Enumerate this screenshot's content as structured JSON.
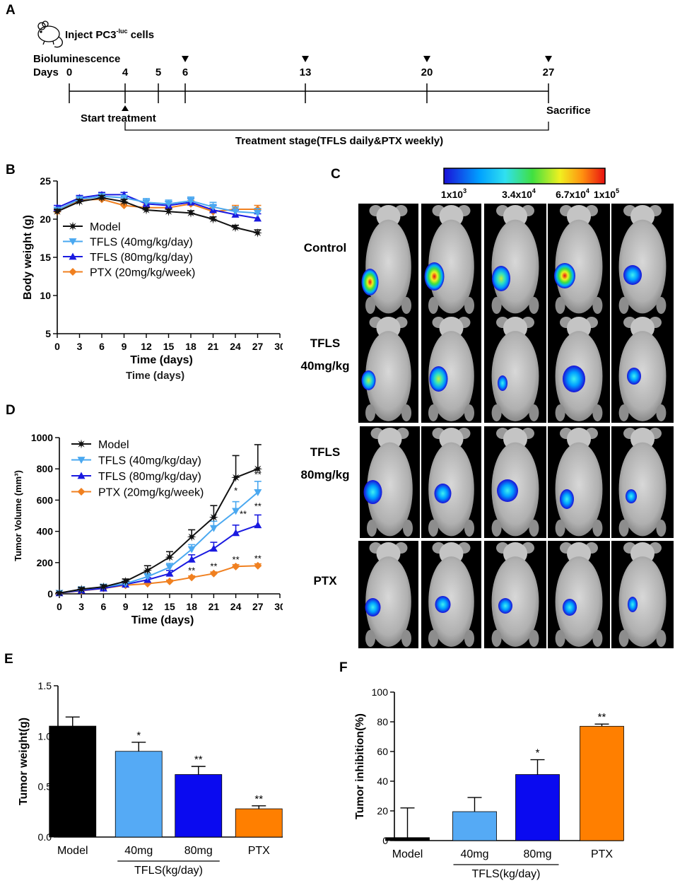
{
  "panels": {
    "A": "A",
    "B": "B",
    "C": "C",
    "D": "D",
    "E": "E",
    "F": "F"
  },
  "timeline": {
    "inject_label": "Inject PC3",
    "inject_superscript": "-luc",
    "inject_suffix": " cells",
    "biolum_label": "Bioluminescence",
    "days_label": "Days",
    "days": [
      0,
      4,
      5,
      6,
      13,
      20,
      27
    ],
    "biolum_days": [
      6,
      13,
      20,
      27
    ],
    "start_label": "Start treatment",
    "sacrifice_label": "Sacrifice",
    "stage_label": "Treatment stage(TFLS daily&PTX weekly)"
  },
  "colorbar": {
    "labels": [
      "1x10",
      "3.4x10",
      "6.7x10",
      "1x10"
    ],
    "exponents": [
      "3",
      "4",
      "4",
      "5"
    ],
    "colors": [
      "#1a10d8",
      "#00a0ff",
      "#30e0f0",
      "#40e040",
      "#f0f020",
      "#ff9010",
      "#e81010"
    ]
  },
  "imaging": {
    "row_labels": [
      [
        "Control"
      ],
      [
        "TFLS",
        "40mg/kg"
      ],
      [
        "TFLS",
        "80mg/kg"
      ],
      [
        "PTX"
      ]
    ],
    "counts_per_row": 5
  },
  "watermark_text": "Time (days)",
  "legend_colors": {
    "Model": "#111111",
    "TFLS40": "#4aa8f0",
    "TFLS80": "#1a1ae0",
    "PTX": "#f08020"
  },
  "chart_data": [
    {
      "id": "B",
      "type": "line",
      "title": "",
      "xlabel": "Time (days)",
      "ylabel": "Body weight (g)",
      "xlim": [
        0,
        30
      ],
      "ylim": [
        5,
        25
      ],
      "xticks": [
        0,
        3,
        6,
        9,
        12,
        15,
        18,
        21,
        24,
        27,
        30
      ],
      "yticks": [
        5,
        10,
        15,
        20,
        25
      ],
      "x": [
        0,
        3,
        6,
        9,
        12,
        15,
        18,
        21,
        24,
        27
      ],
      "series": [
        {
          "name": "Model",
          "color": "#111111",
          "marker": "star",
          "values": [
            21.0,
            22.3,
            22.8,
            22.3,
            21.2,
            21.0,
            20.8,
            20.0,
            18.9,
            18.2
          ],
          "errors": [
            0.3,
            0.3,
            0.3,
            0.3,
            0.3,
            0.3,
            0.3,
            0.3,
            0.3,
            0.4
          ]
        },
        {
          "name": "TFLS (40mg/kg/day)",
          "color": "#4aa8f0",
          "marker": "tri-down",
          "values": [
            21.2,
            22.6,
            23.0,
            22.8,
            22.2,
            22.0,
            22.4,
            21.6,
            21.0,
            20.8
          ],
          "errors": [
            0.3,
            0.3,
            0.3,
            0.3,
            0.5,
            0.5,
            0.5,
            0.6,
            0.6,
            0.6
          ]
        },
        {
          "name": "TFLS (80mg/kg/day)",
          "color": "#1a1ae0",
          "marker": "tri-up",
          "values": [
            21.5,
            22.8,
            23.2,
            23.2,
            22.0,
            21.8,
            22.2,
            21.2,
            20.6,
            20.1
          ],
          "errors": [
            0.3,
            0.3,
            0.3,
            0.3,
            0.5,
            0.5,
            0.5,
            0.6,
            0.6,
            0.6
          ]
        },
        {
          "name": "PTX (20mg/kg/week)",
          "color": "#f08020",
          "marker": "diamond",
          "values": [
            21.0,
            22.5,
            22.6,
            21.8,
            21.5,
            21.5,
            22.0,
            21.0,
            21.3,
            21.3
          ],
          "errors": [
            0.3,
            0.3,
            0.3,
            0.3,
            0.4,
            0.4,
            0.4,
            0.5,
            0.5,
            0.5
          ]
        }
      ]
    },
    {
      "id": "D",
      "type": "line",
      "title": "",
      "xlabel": "Time (days)",
      "ylabel": "Tumor Volume (mm³)",
      "xlim": [
        0,
        30
      ],
      "ylim": [
        0,
        1000
      ],
      "xticks": [
        0,
        3,
        6,
        9,
        12,
        15,
        18,
        21,
        24,
        27,
        30
      ],
      "yticks": [
        0,
        200,
        400,
        600,
        800,
        1000
      ],
      "x": [
        0,
        3,
        6,
        9,
        12,
        15,
        18,
        21,
        24,
        27
      ],
      "series": [
        {
          "name": "Model",
          "color": "#111111",
          "marker": "star",
          "values": [
            5,
            30,
            45,
            80,
            150,
            235,
            365,
            490,
            745,
            800
          ],
          "errors": [
            5,
            10,
            12,
            15,
            30,
            35,
            45,
            75,
            140,
            155
          ]
        },
        {
          "name": "TFLS (40mg/kg/day)",
          "color": "#4aa8f0",
          "marker": "tri-down",
          "values": [
            5,
            28,
            45,
            65,
            110,
            170,
            285,
            420,
            530,
            650
          ],
          "errors": [
            5,
            10,
            12,
            12,
            20,
            25,
            30,
            45,
            60,
            70
          ]
        },
        {
          "name": "TFLS (80mg/kg/day)",
          "color": "#1a1ae0",
          "marker": "tri-up",
          "values": [
            5,
            22,
            35,
            60,
            90,
            130,
            220,
            290,
            390,
            440
          ],
          "errors": [
            5,
            8,
            10,
            10,
            15,
            20,
            30,
            40,
            50,
            65
          ]
        },
        {
          "name": "PTX (20mg/kg/week)",
          "color": "#f08020",
          "marker": "diamond",
          "values": [
            5,
            20,
            35,
            55,
            65,
            80,
            105,
            130,
            175,
            180
          ],
          "errors": [
            4,
            6,
            8,
            8,
            8,
            8,
            10,
            10,
            12,
            12
          ]
        }
      ],
      "annotations": [
        {
          "x": 24,
          "y": 640,
          "text": "*"
        },
        {
          "x": 27,
          "y": 745,
          "text": "**"
        },
        {
          "x": 25,
          "y": 490,
          "text": "**"
        },
        {
          "x": 27,
          "y": 540,
          "text": "**"
        },
        {
          "x": 18,
          "y": 130,
          "text": "**"
        },
        {
          "x": 21,
          "y": 155,
          "text": "**"
        },
        {
          "x": 24,
          "y": 200,
          "text": "**"
        },
        {
          "x": 27,
          "y": 205,
          "text": "**"
        }
      ]
    },
    {
      "id": "E",
      "type": "bar",
      "title": "",
      "xlabel": "",
      "ylabel": "Tumor weight(g)",
      "ylim": [
        0,
        1.5
      ],
      "yticks": [
        "0.0",
        "0.5",
        "1.0",
        "1.5"
      ],
      "categories": [
        "Model",
        "40mg",
        "80mg",
        "PTX"
      ],
      "group_label": "TFLS(kg/day)",
      "values": [
        1.1,
        0.85,
        0.62,
        0.28
      ],
      "errors": [
        0.09,
        0.09,
        0.08,
        0.03
      ],
      "significance": [
        "",
        "*",
        "**",
        "**"
      ],
      "colors": [
        "#000000",
        "#55aaf5",
        "#0a0af0",
        "#ff7f00"
      ]
    },
    {
      "id": "F",
      "type": "bar",
      "title": "",
      "xlabel": "",
      "ylabel": "Tumor inhibition(%)",
      "ylim": [
        0,
        100
      ],
      "yticks": [
        "0",
        "20",
        "40",
        "60",
        "80",
        "100"
      ],
      "categories": [
        "Model",
        "40mg",
        "80mg",
        "PTX"
      ],
      "group_label": "TFLS(kg/day)",
      "values": [
        2,
        19.5,
        44.5,
        77
      ],
      "errors": [
        20,
        9.5,
        10,
        1.5
      ],
      "significance": [
        "",
        "",
        "*",
        "**"
      ],
      "colors": [
        "#000000",
        "#55aaf5",
        "#0a0af0",
        "#ff7f00"
      ]
    }
  ]
}
